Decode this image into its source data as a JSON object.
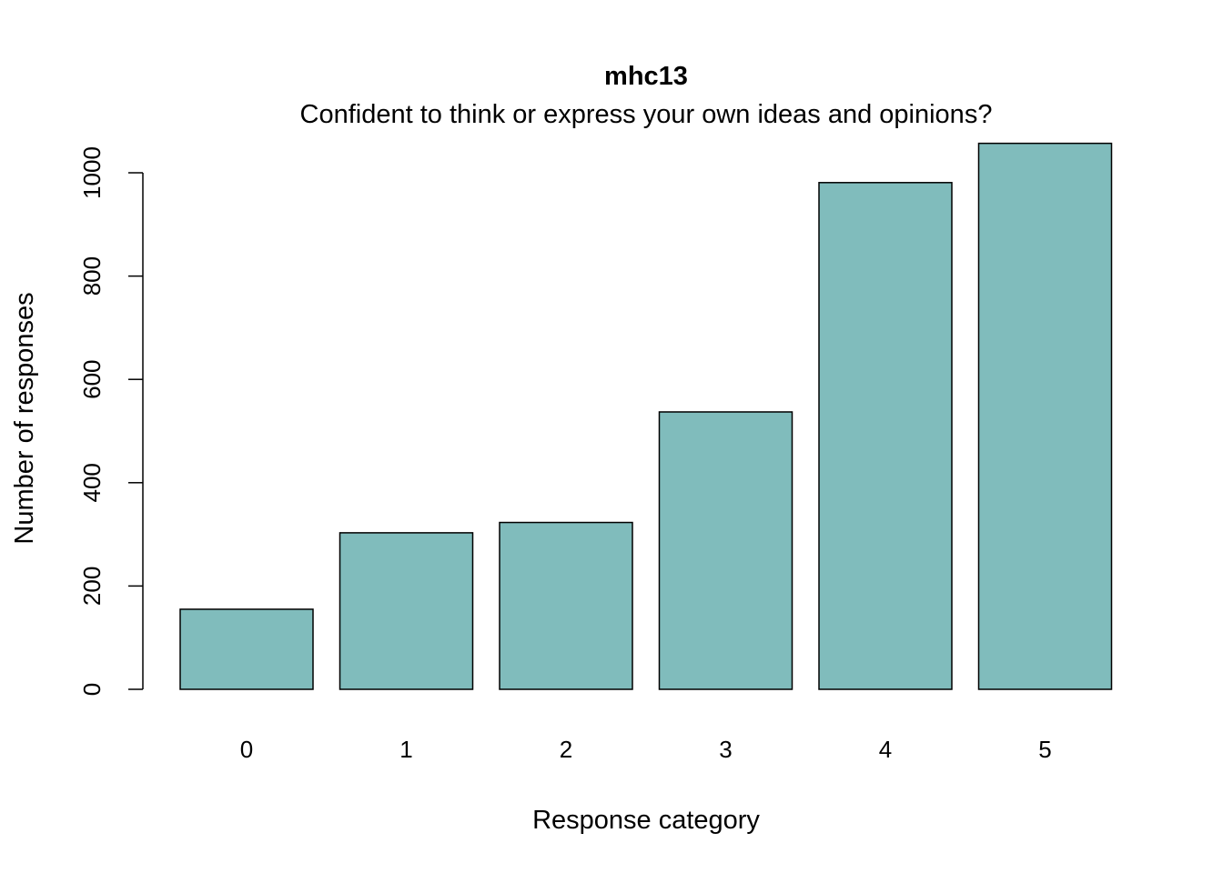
{
  "chart_data": {
    "type": "bar",
    "title": "mhc13",
    "subtitle": "Confident to think or express your own ideas and opinions?",
    "xlabel": "Response category",
    "ylabel": "Number of responses",
    "categories": [
      "0",
      "1",
      "2",
      "3",
      "4",
      "5"
    ],
    "values": [
      155,
      303,
      323,
      537,
      981,
      1057
    ],
    "yticks": [
      0,
      200,
      400,
      600,
      800,
      1000
    ],
    "ylim": [
      0,
      1057
    ],
    "bar_color": "#80bcbc",
    "bar_stroke": "#000000",
    "grid": false,
    "legend": "none"
  }
}
